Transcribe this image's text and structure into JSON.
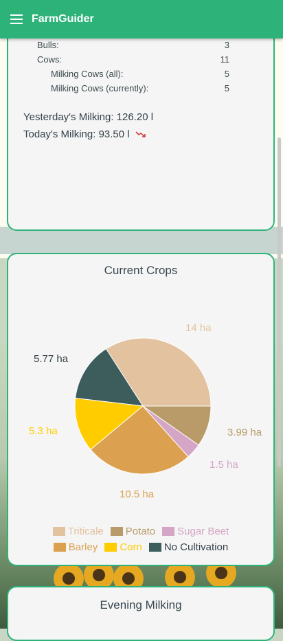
{
  "app": {
    "title": "FarmGuider"
  },
  "herd": {
    "rows": [
      {
        "label": "Bulls:",
        "value": "3",
        "indent": 0
      },
      {
        "label": "Cows:",
        "value": "11",
        "indent": 0
      },
      {
        "label": "Milking Cows (all):",
        "value": "5",
        "indent": 1
      },
      {
        "label": "Milking Cows (currently):",
        "value": "5",
        "indent": 1
      }
    ],
    "yesterday": "Yesterday's Milking: 126.20 l",
    "today": "Today's Milking: 93.50 l",
    "trend_icon": "trending-down-icon"
  },
  "crops": {
    "title": "Current Crops",
    "chart_data": {
      "type": "pie",
      "slices": [
        {
          "name": "Triticale",
          "value": 14,
          "label": "14 ha",
          "color": "#e2c29f"
        },
        {
          "name": "No Cultivation",
          "value": 5.77,
          "label": "5.77 ha",
          "color": "#3d5c5c"
        },
        {
          "name": "Corn",
          "value": 5.3,
          "label": "5.3 ha",
          "color": "#ffcc00"
        },
        {
          "name": "Barley",
          "value": 10.5,
          "label": "10.5 ha",
          "color": "#dba151"
        },
        {
          "name": "Sugar Beet",
          "value": 1.5,
          "label": "1.5 ha",
          "color": "#d4a5c4"
        },
        {
          "name": "Potato",
          "value": 3.99,
          "label": "3.99 ha",
          "color": "#b89b68"
        }
      ],
      "legend_rows": [
        [
          "Triticale",
          "Potato",
          "Sugar Beet"
        ],
        [
          "Barley",
          "Corn",
          "No Cultivation"
        ]
      ]
    }
  },
  "evening": {
    "title": "Evening Milking"
  },
  "colors": {
    "brand": "#2db37a",
    "card": "#f5f5f5"
  }
}
